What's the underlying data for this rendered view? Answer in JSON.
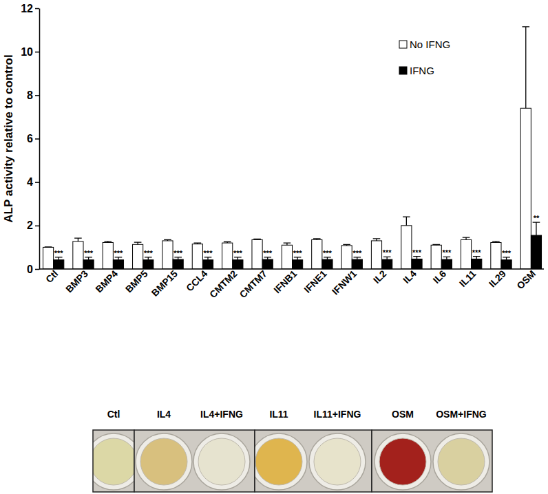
{
  "chart_data": {
    "type": "bar",
    "y_label": "ALP activity relative to control",
    "categories": [
      "Ctl",
      "BMP3",
      "BMP4",
      "BMP5",
      "BMP15",
      "CCL4",
      "CMTM2",
      "CMTM7",
      "IFNB1",
      "IFNE1",
      "IFNW1",
      "IL2",
      "IL4",
      "IL6",
      "IL11",
      "IL29",
      "OSM"
    ],
    "series": [
      {
        "name": "No IFNG",
        "color": "#ffffff",
        "values": [
          1.0,
          1.27,
          1.22,
          1.13,
          1.3,
          1.15,
          1.2,
          1.35,
          1.1,
          1.35,
          1.08,
          1.3,
          2.0,
          1.1,
          1.35,
          1.22,
          7.4
        ],
        "errors": [
          0.02,
          0.15,
          0.05,
          0.1,
          0.05,
          0.05,
          0.05,
          0.03,
          0.1,
          0.05,
          0.05,
          0.1,
          0.4,
          0.03,
          0.1,
          0.05,
          3.75
        ]
      },
      {
        "name": "IFNG",
        "color": "#000000",
        "values": [
          0.42,
          0.42,
          0.42,
          0.42,
          0.44,
          0.42,
          0.42,
          0.44,
          0.42,
          0.44,
          0.44,
          0.44,
          0.46,
          0.44,
          0.46,
          0.42,
          1.55
        ],
        "errors": [
          0.12,
          0.12,
          0.12,
          0.12,
          0.1,
          0.12,
          0.12,
          0.1,
          0.12,
          0.1,
          0.1,
          0.12,
          0.12,
          0.12,
          0.12,
          0.12,
          0.6
        ],
        "annotations": [
          "***",
          "***",
          "***",
          "***",
          "***",
          "***",
          "***",
          "***",
          "***",
          "***",
          "***",
          "***",
          "***",
          "***",
          "***",
          "***",
          "**"
        ]
      }
    ],
    "ylim": [
      0,
      12
    ],
    "yticks": [
      0,
      2,
      4,
      6,
      8,
      10,
      12
    ],
    "grid": false,
    "legend": "upper right"
  },
  "wells": {
    "labels": [
      "Ctl",
      "IL4",
      "IL4+IFNG",
      "IL11",
      "IL11+IFNG",
      "OSM",
      "OSM+IFNG"
    ],
    "colors": [
      "#dcd8a6",
      "#d8c07e",
      "#e6e3cf",
      "#dfb54e",
      "#e7e3cb",
      "#a3211c",
      "#d9d0a0"
    ]
  }
}
